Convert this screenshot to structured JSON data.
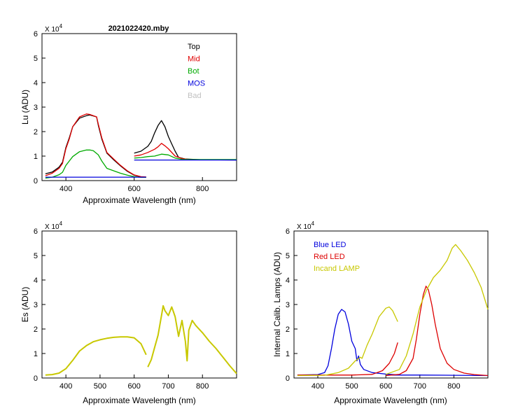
{
  "chart_data": [
    {
      "id": "lu",
      "type": "line",
      "title": "2021022420.mby",
      "xlabel": "Approximate Wavelength (nm)",
      "ylabel": "Lu (ADU)",
      "multiplier": "X 10",
      "multiplier_exp": "4",
      "xlim": [
        330,
        900
      ],
      "ylim": [
        0,
        6
      ],
      "xticks": [
        "400",
        "600",
        "800"
      ],
      "yticks": [
        "0",
        "1",
        "2",
        "3",
        "4",
        "5",
        "6"
      ],
      "grid": false,
      "legend_position": "top-right",
      "legend": [
        {
          "name": "Top",
          "color": "#000000"
        },
        {
          "name": "Mid",
          "color": "#e00000"
        },
        {
          "name": "Bot",
          "color": "#00aa00"
        },
        {
          "name": "MOS",
          "color": "#0000dd"
        },
        {
          "name": "Bad",
          "color": "#c0c0c0"
        }
      ],
      "series": [
        {
          "name": "Top",
          "color": "#000000",
          "segments": [
            {
              "x": [
                340,
                360,
                380,
                390,
                400,
                410,
                420,
                440,
                460,
                470,
                490,
                495,
                505,
                520,
                540,
                560,
                580,
                600,
                620,
                635
              ],
              "y": [
                0.28,
                0.35,
                0.55,
                0.75,
                1.35,
                1.75,
                2.2,
                2.55,
                2.65,
                2.68,
                2.6,
                2.25,
                1.7,
                1.12,
                0.85,
                0.6,
                0.38,
                0.22,
                0.15,
                0.14
              ]
            },
            {
              "x": [
                600,
                620,
                640,
                650,
                660,
                670,
                680,
                690,
                700,
                710,
                720,
                730,
                750,
                800,
                850,
                900
              ],
              "y": [
                1.12,
                1.2,
                1.4,
                1.6,
                1.95,
                2.25,
                2.45,
                2.2,
                1.8,
                1.5,
                1.2,
                0.95,
                0.88,
                0.85,
                0.85,
                0.84
              ]
            }
          ]
        },
        {
          "name": "Mid",
          "color": "#e00000",
          "segments": [
            {
              "x": [
                340,
                360,
                380,
                390,
                400,
                410,
                420,
                440,
                460,
                470,
                490,
                495,
                505,
                520,
                540,
                560,
                580,
                600,
                620,
                635
              ],
              "y": [
                0.2,
                0.3,
                0.5,
                0.7,
                1.3,
                1.7,
                2.2,
                2.6,
                2.72,
                2.7,
                2.6,
                2.3,
                1.75,
                1.15,
                0.88,
                0.62,
                0.4,
                0.23,
                0.16,
                0.15
              ]
            },
            {
              "x": [
                600,
                620,
                640,
                660,
                670,
                680,
                690,
                700,
                720,
                740,
                760,
                800,
                850,
                900
              ],
              "y": [
                1.0,
                1.05,
                1.15,
                1.28,
                1.38,
                1.52,
                1.42,
                1.3,
                1.0,
                0.9,
                0.86,
                0.85,
                0.85,
                0.85
              ]
            }
          ]
        },
        {
          "name": "Bot",
          "color": "#00aa00",
          "segments": [
            {
              "x": [
                340,
                360,
                380,
                390,
                400,
                410,
                420,
                440,
                460,
                470,
                480,
                495,
                505,
                520,
                540,
                560,
                580,
                600,
                620,
                635
              ],
              "y": [
                0.1,
                0.14,
                0.24,
                0.34,
                0.62,
                0.8,
                0.98,
                1.18,
                1.25,
                1.25,
                1.22,
                1.05,
                0.8,
                0.5,
                0.4,
                0.3,
                0.22,
                0.16,
                0.13,
                0.13
              ]
            },
            {
              "x": [
                600,
                620,
                640,
                660,
                680,
                700,
                720,
                740,
                760,
                800,
                850,
                900
              ],
              "y": [
                0.92,
                0.94,
                0.98,
                1.0,
                1.08,
                1.05,
                0.92,
                0.87,
                0.86,
                0.86,
                0.86,
                0.86
              ]
            }
          ]
        },
        {
          "name": "MOS",
          "color": "#0000dd",
          "segments": [
            {
              "x": [
                340,
                635
              ],
              "y": [
                0.14,
                0.14
              ]
            },
            {
              "x": [
                600,
                900
              ],
              "y": [
                0.84,
                0.84
              ]
            }
          ]
        }
      ]
    },
    {
      "id": "es",
      "type": "line",
      "xlabel": "Approximate Wavelength (nm)",
      "ylabel": "Es  (ADU)",
      "multiplier": "X 10",
      "multiplier_exp": "4",
      "xlim": [
        330,
        900
      ],
      "ylim": [
        0,
        6
      ],
      "xticks": [
        "400",
        "500",
        "600",
        "700",
        "800"
      ],
      "yticks": [
        "0",
        "1",
        "2",
        "3",
        "4",
        "5",
        "6"
      ],
      "grid": false,
      "series": [
        {
          "name": "",
          "color": "#c8c800",
          "segments": [
            {
              "x": [
                340,
                360,
                380,
                400,
                420,
                440,
                460,
                480,
                500,
                520,
                540,
                560,
                580,
                600,
                620,
                635
              ],
              "y": [
                0.12,
                0.14,
                0.2,
                0.38,
                0.72,
                1.1,
                1.32,
                1.48,
                1.56,
                1.62,
                1.66,
                1.68,
                1.68,
                1.64,
                1.4,
                0.95
              ]
            },
            {
              "x": [
                640,
                650,
                660,
                670,
                680,
                685,
                690,
                700,
                710,
                715,
                720,
                730,
                740,
                750,
                755,
                760,
                770,
                780,
                800,
                820,
                840,
                860,
                880,
                900
              ],
              "y": [
                0.45,
                0.75,
                1.25,
                1.75,
                2.55,
                2.95,
                2.75,
                2.55,
                2.9,
                2.7,
                2.5,
                1.7,
                2.35,
                1.5,
                0.7,
                1.95,
                2.35,
                2.15,
                1.85,
                1.5,
                1.2,
                0.85,
                0.5,
                0.18
              ]
            }
          ]
        }
      ]
    },
    {
      "id": "lamps",
      "type": "line",
      "xlabel": "Approximate Wavelength (nm)",
      "ylabel": "Internal Calib. Lamps  (ADU)",
      "multiplier": "X 10",
      "multiplier_exp": "4",
      "xlim": [
        330,
        900
      ],
      "ylim": [
        0,
        6
      ],
      "xticks": [
        "400",
        "500",
        "600",
        "700",
        "800"
      ],
      "yticks": [
        "0",
        "1",
        "2",
        "3",
        "4",
        "5",
        "6"
      ],
      "grid": false,
      "legend_position": "top-left",
      "legend": [
        {
          "name": "Blue LED",
          "color": "#0000dd"
        },
        {
          "name": "Red LED",
          "color": "#dd0000"
        },
        {
          "name": "Incand LAMP",
          "color": "#c8c800"
        }
      ],
      "series": [
        {
          "name": "Blue LED",
          "color": "#0000dd",
          "segments": [
            {
              "x": [
                340,
                400,
                420,
                430,
                440,
                450,
                460,
                470,
                480,
                490,
                500,
                510,
                515,
                520,
                525,
                535,
                560,
                600,
                635
              ],
              "y": [
                0.12,
                0.14,
                0.22,
                0.5,
                1.2,
                2.0,
                2.6,
                2.8,
                2.7,
                2.2,
                1.5,
                1.2,
                0.7,
                0.9,
                0.55,
                0.35,
                0.22,
                0.16,
                0.13
              ]
            },
            {
              "x": [
                600,
                700,
                800,
                900
              ],
              "y": [
                0.12,
                0.12,
                0.11,
                0.1
              ]
            }
          ]
        },
        {
          "name": "Red LED",
          "color": "#dd0000",
          "segments": [
            {
              "x": [
                340,
                500,
                560,
                590,
                610,
                625,
                635
              ],
              "y": [
                0.12,
                0.12,
                0.15,
                0.3,
                0.6,
                1.0,
                1.45
              ]
            },
            {
              "x": [
                600,
                640,
                660,
                680,
                690,
                700,
                710,
                718,
                725,
                735,
                745,
                760,
                780,
                800,
                830,
                860,
                900
              ],
              "y": [
                0.1,
                0.15,
                0.3,
                0.8,
                1.6,
                2.6,
                3.4,
                3.75,
                3.6,
                3.0,
                2.2,
                1.2,
                0.6,
                0.35,
                0.2,
                0.14,
                0.1
              ]
            }
          ]
        },
        {
          "name": "Incand LAMP",
          "color": "#c8c800",
          "segments": [
            {
              "x": [
                340,
                420,
                460,
                490,
                510,
                525,
                530,
                545,
                560,
                580,
                600,
                610,
                620,
                635
              ],
              "y": [
                0.1,
                0.11,
                0.22,
                0.4,
                0.7,
                0.85,
                0.8,
                1.35,
                1.8,
                2.5,
                2.85,
                2.9,
                2.75,
                2.3
              ]
            },
            {
              "x": [
                600,
                640,
                660,
                680,
                700,
                720,
                740,
                760,
                780,
                795,
                805,
                820,
                840,
                860,
                880,
                900
              ],
              "y": [
                0.15,
                0.35,
                0.9,
                1.8,
                2.9,
                3.6,
                4.1,
                4.4,
                4.8,
                5.3,
                5.45,
                5.2,
                4.8,
                4.3,
                3.7,
                2.8
              ]
            }
          ]
        }
      ]
    }
  ]
}
